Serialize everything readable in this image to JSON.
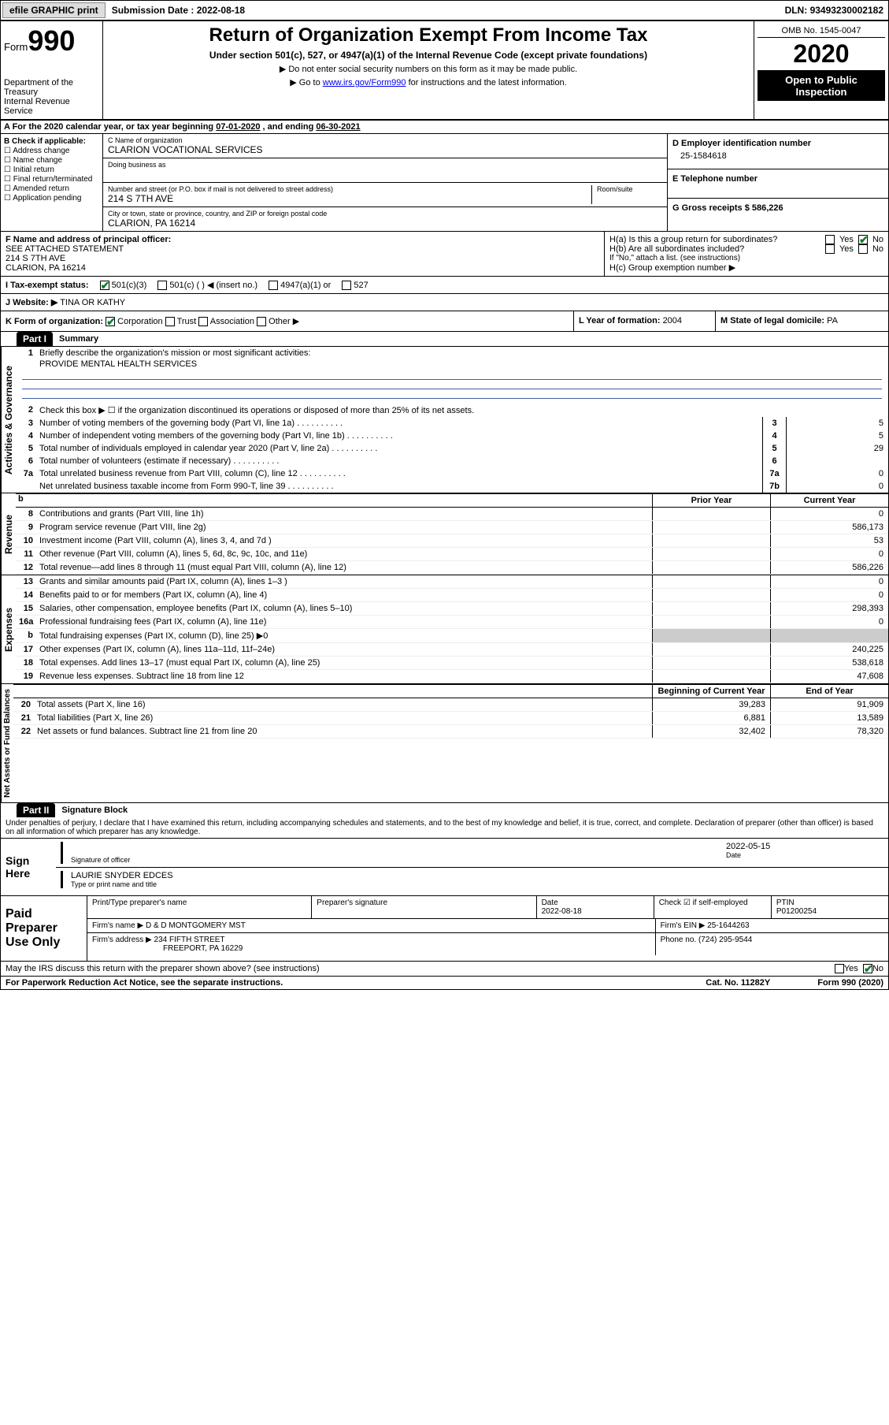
{
  "topbar": {
    "efile_btn": "efile GRAPHIC print",
    "sub_label": "Submission Date : ",
    "sub_date": "2022-08-18",
    "dln_label": "DLN: ",
    "dln": "93493230002182"
  },
  "header": {
    "form_word": "Form",
    "form_num": "990",
    "dept": "Department of the Treasury",
    "irs": "Internal Revenue Service",
    "title": "Return of Organization Exempt From Income Tax",
    "sub1": "Under section 501(c), 527, or 4947(a)(1) of the Internal Revenue Code (except private foundations)",
    "sub2": "Do not enter social security numbers on this form as it may be made public.",
    "sub3_pre": "Go to ",
    "sub3_link": "www.irs.gov/Form990",
    "sub3_post": " for instructions and the latest information.",
    "omb": "OMB No. 1545-0047",
    "year": "2020",
    "inspect": "Open to Public Inspection"
  },
  "period": {
    "text_a": "A For the 2020 calendar year, or tax year beginning ",
    "begin": "07-01-2020",
    "text_b": " , and ending ",
    "end": "06-30-2021"
  },
  "boxB": {
    "label": "B Check if applicable:",
    "items": [
      "Address change",
      "Name change",
      "Initial return",
      "Final return/terminated",
      "Amended return",
      "Application pending"
    ]
  },
  "boxC": {
    "name_lbl": "C Name of organization",
    "name": "CLARION VOCATIONAL SERVICES",
    "dba_lbl": "Doing business as",
    "addr_lbl": "Number and street (or P.O. box if mail is not delivered to street address)",
    "room_lbl": "Room/suite",
    "addr": "214 S 7TH AVE",
    "city_lbl": "City or town, state or province, country, and ZIP or foreign postal code",
    "city": "CLARION, PA  16214"
  },
  "boxD": {
    "lbl": "D Employer identification number",
    "val": "25-1584618"
  },
  "boxE": {
    "lbl": "E Telephone number",
    "val": ""
  },
  "boxG": {
    "lbl": "G Gross receipts $ ",
    "val": "586,226"
  },
  "boxF": {
    "lbl": "F  Name and address of principal officer:",
    "l1": "SEE ATTACHED STATEMENT",
    "l2": "214 S 7TH AVE",
    "l3": "CLARION, PA  16214"
  },
  "boxH": {
    "ha": "H(a)  Is this a group return for subordinates?",
    "hb": "H(b)  Are all subordinates included?",
    "hb_note": "If \"No,\" attach a list. (see instructions)",
    "hc": "H(c)  Group exemption number ▶",
    "yes": "Yes",
    "no": "No"
  },
  "boxI": {
    "lbl": "I  Tax-exempt status:",
    "o1": "501(c)(3)",
    "o2": "501(c) (  ) ◀ (insert no.)",
    "o3": "4947(a)(1) or",
    "o4": "527"
  },
  "boxJ": {
    "lbl": "J   Website: ▶",
    "val": "TINA OR KATHY"
  },
  "boxK": {
    "lbl": "K Form of organization:",
    "o1": "Corporation",
    "o2": "Trust",
    "o3": "Association",
    "o4": "Other ▶"
  },
  "boxL": {
    "lbl": "L Year of formation: ",
    "val": "2004"
  },
  "boxM": {
    "lbl": "M State of legal domicile: ",
    "val": "PA"
  },
  "part1": {
    "hdr": "Part I",
    "title": "Summary",
    "q1": "Briefly describe the organization's mission or most significant activities:",
    "q1_val": "PROVIDE MENTAL HEALTH SERVICES",
    "q2": "Check this box ▶ ☐  if the organization discontinued its operations or disposed of more than 25% of its net assets.",
    "rows_a": [
      {
        "n": "3",
        "t": "Number of voting members of the governing body (Part VI, line 1a)",
        "k": "3",
        "v": "5"
      },
      {
        "n": "4",
        "t": "Number of independent voting members of the governing body (Part VI, line 1b)",
        "k": "4",
        "v": "5"
      },
      {
        "n": "5",
        "t": "Total number of individuals employed in calendar year 2020 (Part V, line 2a)",
        "k": "5",
        "v": "29"
      },
      {
        "n": "6",
        "t": "Total number of volunteers (estimate if necessary)",
        "k": "6",
        "v": ""
      },
      {
        "n": "7a",
        "t": "Total unrelated business revenue from Part VIII, column (C), line 12",
        "k": "7a",
        "v": "0"
      },
      {
        "n": "",
        "t": "Net unrelated business taxable income from Form 990-T, line 39",
        "k": "7b",
        "v": "0"
      }
    ],
    "col_hdr_prior": "Prior Year",
    "col_hdr_curr": "Current Year",
    "rev_rows": [
      {
        "n": "8",
        "t": "Contributions and grants (Part VIII, line 1h)",
        "p": "",
        "c": "0"
      },
      {
        "n": "9",
        "t": "Program service revenue (Part VIII, line 2g)",
        "p": "",
        "c": "586,173"
      },
      {
        "n": "10",
        "t": "Investment income (Part VIII, column (A), lines 3, 4, and 7d )",
        "p": "",
        "c": "53"
      },
      {
        "n": "11",
        "t": "Other revenue (Part VIII, column (A), lines 5, 6d, 8c, 9c, 10c, and 11e)",
        "p": "",
        "c": "0"
      },
      {
        "n": "12",
        "t": "Total revenue—add lines 8 through 11 (must equal Part VIII, column (A), line 12)",
        "p": "",
        "c": "586,226"
      }
    ],
    "exp_rows": [
      {
        "n": "13",
        "t": "Grants and similar amounts paid (Part IX, column (A), lines 1–3 )",
        "p": "",
        "c": "0"
      },
      {
        "n": "14",
        "t": "Benefits paid to or for members (Part IX, column (A), line 4)",
        "p": "",
        "c": "0"
      },
      {
        "n": "15",
        "t": "Salaries, other compensation, employee benefits (Part IX, column (A), lines 5–10)",
        "p": "",
        "c": "298,393"
      },
      {
        "n": "16a",
        "t": "Professional fundraising fees (Part IX, column (A), line 11e)",
        "p": "",
        "c": "0"
      },
      {
        "n": "b",
        "t": "Total fundraising expenses (Part IX, column (D), line 25) ▶0",
        "p": "GRAY",
        "c": "GRAY"
      },
      {
        "n": "17",
        "t": "Other expenses (Part IX, column (A), lines 11a–11d, 11f–24e)",
        "p": "",
        "c": "240,225"
      },
      {
        "n": "18",
        "t": "Total expenses. Add lines 13–17 (must equal Part IX, column (A), line 25)",
        "p": "",
        "c": "538,618"
      },
      {
        "n": "19",
        "t": "Revenue less expenses. Subtract line 18 from line 12",
        "p": "",
        "c": "47,608"
      }
    ],
    "col_hdr_beg": "Beginning of Current Year",
    "col_hdr_end": "End of Year",
    "na_rows": [
      {
        "n": "20",
        "t": "Total assets (Part X, line 16)",
        "p": "39,283",
        "c": "91,909"
      },
      {
        "n": "21",
        "t": "Total liabilities (Part X, line 26)",
        "p": "6,881",
        "c": "13,589"
      },
      {
        "n": "22",
        "t": "Net assets or fund balances. Subtract line 21 from line 20",
        "p": "32,402",
        "c": "78,320"
      }
    ],
    "vlabels": {
      "gov": "Activities & Governance",
      "rev": "Revenue",
      "exp": "Expenses",
      "na": "Net Assets or Fund Balances"
    }
  },
  "part2": {
    "hdr": "Part II",
    "title": "Signature Block",
    "decl": "Under penalties of perjury, I declare that I have examined this return, including accompanying schedules and statements, and to the best of my knowledge and belief, it is true, correct, and complete. Declaration of preparer (other than officer) is based on all information of which preparer has any knowledge."
  },
  "sign": {
    "lbl": "Sign Here",
    "sig_lbl": "Signature of officer",
    "date_lbl": "Date",
    "date": "2022-05-15",
    "name": "LAURIE SNYDER EDCES",
    "name_lbl": "Type or print name and title"
  },
  "prep": {
    "lbl": "Paid Preparer Use Only",
    "h1": "Print/Type preparer's name",
    "h2": "Preparer's signature",
    "h3": "Date",
    "h3v": "2022-08-18",
    "h4": "Check ☑ if self-employed",
    "h5": "PTIN",
    "h5v": "P01200254",
    "firm_lbl": "Firm's name    ▶ ",
    "firm": "D & D MONTGOMERY MST",
    "ein_lbl": "Firm's EIN ▶ ",
    "ein": "25-1644263",
    "addr_lbl": "Firm's address ▶ ",
    "addr1": "234 FIFTH STREET",
    "addr2": "FREEPORT, PA  16229",
    "phone_lbl": "Phone no. ",
    "phone": "(724) 295-9544"
  },
  "discuss": {
    "q": "May the IRS discuss this return with the preparer shown above? (see instructions)",
    "yes": "Yes",
    "no": "No"
  },
  "bottom": {
    "pra": "For Paperwork Reduction Act Notice, see the separate instructions.",
    "cat": "Cat. No. 11282Y",
    "form": "Form 990 (2020)"
  }
}
